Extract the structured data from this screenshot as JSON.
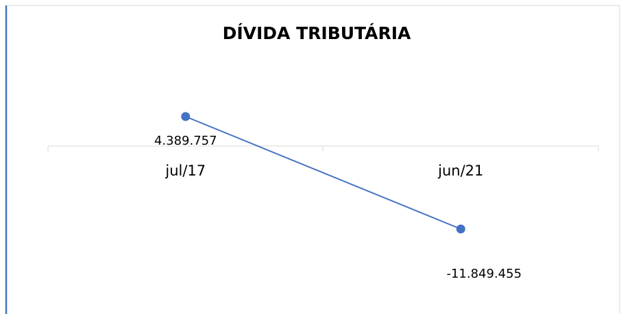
{
  "chart_data": {
    "type": "line",
    "title": "DÍVIDA TRIBUTÁRIA",
    "categories": [
      "jul/17",
      "jun/21"
    ],
    "series": [
      {
        "name": "Dívida Tributária",
        "color": "#4472c4",
        "values": [
          4389757,
          -11849455
        ],
        "value_labels": [
          "4.389.757",
          "-11.849.455"
        ]
      }
    ]
  }
}
